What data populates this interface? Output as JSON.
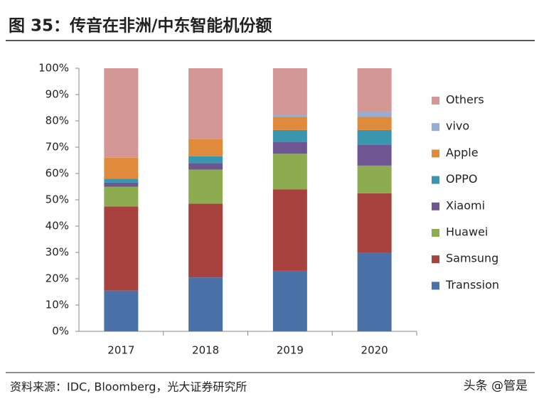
{
  "chart_data": {
    "type": "stacked_bar",
    "title": "图 35：传音在非洲/中东智能机份额",
    "source": "资料来源：IDC, Bloomberg，光大证券研究所",
    "watermark": "头条 @管是",
    "categories": [
      "2017",
      "2018",
      "2019",
      "2020"
    ],
    "series": [
      {
        "name": "Transsion",
        "color": "#4a72a8",
        "values": [
          15.5,
          20.5,
          23,
          30
        ]
      },
      {
        "name": "Samsung",
        "color": "#a8423f",
        "values": [
          32,
          28,
          31,
          22.5
        ]
      },
      {
        "name": "Huawei",
        "color": "#8dab4f",
        "values": [
          7.5,
          13,
          13.5,
          10.5
        ]
      },
      {
        "name": "Xiaomi",
        "color": "#6e5692",
        "values": [
          1.5,
          2.5,
          4.5,
          8
        ]
      },
      {
        "name": "OPPO",
        "color": "#3a95ae",
        "values": [
          1.5,
          2.5,
          4.5,
          5.5
        ]
      },
      {
        "name": "Apple",
        "color": "#e08a3c",
        "values": [
          8,
          6.5,
          5,
          5
        ]
      },
      {
        "name": "vivo",
        "color": "#94afd7",
        "values": [
          0,
          0,
          0.8,
          2
        ]
      },
      {
        "name": "Others",
        "color": "#d39796",
        "values": [
          34,
          27,
          17.7,
          16.5
        ]
      }
    ],
    "ylim": [
      0,
      100
    ],
    "yticks": [
      {
        "value": 0,
        "label": "0%"
      },
      {
        "value": 10,
        "label": "10%"
      },
      {
        "value": 20,
        "label": "20%"
      },
      {
        "value": 30,
        "label": "30%"
      },
      {
        "value": 40,
        "label": "40%"
      },
      {
        "value": 50,
        "label": "50%"
      },
      {
        "value": 60,
        "label": "60%"
      },
      {
        "value": 70,
        "label": "70%"
      },
      {
        "value": 80,
        "label": "80%"
      },
      {
        "value": 90,
        "label": "90%"
      },
      {
        "value": 100,
        "label": "100%"
      }
    ],
    "grid": false,
    "legend": "right"
  }
}
